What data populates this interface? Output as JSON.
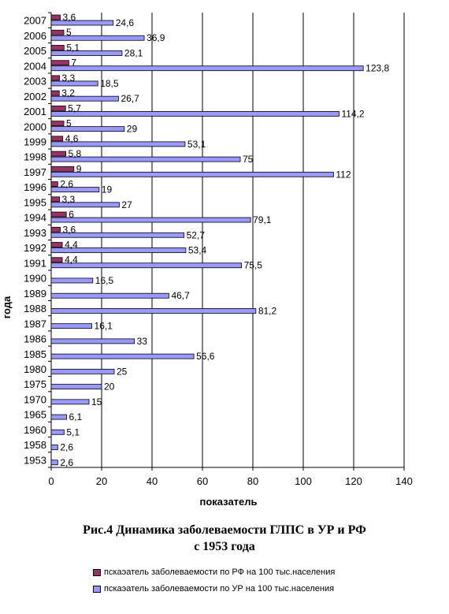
{
  "chart_data": {
    "type": "bar",
    "orientation": "horizontal",
    "categories": [
      "2007",
      "2006",
      "2005",
      "2004",
      "2003",
      "2002",
      "2001",
      "2000",
      "1999",
      "1998",
      "1997",
      "1996",
      "1995",
      "1994",
      "1993",
      "1992",
      "1991",
      "1990",
      "1989",
      "1988",
      "1987",
      "1986",
      "1985",
      "1980",
      "1975",
      "1970",
      "1965",
      "1960",
      "1958",
      "1953"
    ],
    "series": [
      {
        "name": "пскаэатель заболеваемости по РФ на 100 тыс.населения",
        "color": "#993366",
        "values": [
          3.6,
          5,
          5.1,
          7,
          3.3,
          3.2,
          5.7,
          5,
          4.6,
          5.8,
          9,
          2.6,
          3.3,
          6,
          3.6,
          4.4,
          4.4,
          null,
          null,
          null,
          null,
          null,
          null,
          null,
          null,
          null,
          null,
          null,
          null,
          null
        ],
        "labels": [
          "3,6",
          "5",
          "5,1",
          "7",
          "3,3",
          "3,2",
          "5,7",
          "5",
          "4,6",
          "5,8",
          "9",
          "2,6",
          "3,3",
          "6",
          "3,6",
          "4,4",
          "4,4",
          "",
          "",
          "",
          "",
          "",
          "",
          "",
          "",
          "",
          "",
          "",
          "",
          ""
        ]
      },
      {
        "name": "пскаэатель заболеваемости по УР на 100 тыс.населения",
        "color": "#9999ff",
        "values": [
          24.6,
          36.9,
          28.1,
          123.8,
          18.5,
          26.7,
          114.2,
          29,
          53.1,
          75,
          112,
          19,
          27,
          79.1,
          52.7,
          53.4,
          75.5,
          16.5,
          46.7,
          81.2,
          16.1,
          33,
          56.6,
          25,
          20,
          15,
          6.1,
          5.1,
          2.6,
          2.6
        ],
        "labels": [
          "24,6",
          "36,9",
          "28,1",
          "123,8",
          "18,5",
          "26,7",
          "114,2",
          "29",
          "53,1",
          "75",
          "112",
          "19",
          "27",
          "79,1",
          "52,7",
          "53,4",
          "75,5",
          "16,5",
          "46,7",
          "81,2",
          "16,1",
          "33",
          "56,6",
          "25",
          "20",
          "15",
          "6,1",
          "5,1",
          "2,6",
          "2,6"
        ]
      }
    ],
    "xlabel": "показатель",
    "ylabel": "года",
    "xlim": [
      0,
      140
    ],
    "xticks": [
      "0",
      "20",
      "40",
      "60",
      "80",
      "100",
      "120",
      "140"
    ],
    "grid": true,
    "legend_position": "bottom"
  },
  "caption": {
    "line1": "Рис.4 Динамика заболеваемости ГЛПС в УР и РФ",
    "line2": "с 1953 года"
  }
}
